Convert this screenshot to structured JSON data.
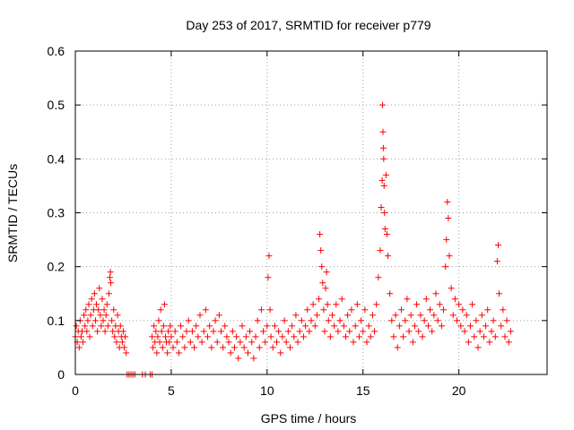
{
  "chart_data": {
    "type": "scatter",
    "title": "Day 253 of 2017, SRMTID for receiver p779",
    "xlabel": "GPS time / hours",
    "ylabel": "SRMTID / TECUs",
    "xlim": [
      0,
      24.6
    ],
    "ylim": [
      0,
      0.6
    ],
    "xticks": [
      0,
      5,
      10,
      15,
      20
    ],
    "yticks": [
      0,
      0.1,
      0.2,
      0.3,
      0.4,
      0.5,
      0.6
    ],
    "xtick_labels": [
      "0",
      "5",
      "10",
      "15",
      "20"
    ],
    "ytick_labels": [
      "0",
      "0.1",
      "0.2",
      "0.3",
      "0.4",
      "0.5",
      "0.6"
    ],
    "grid": true,
    "marker": "+",
    "color": "#ff0000",
    "series": [
      {
        "name": "SRMTID",
        "points": [
          [
            0.0,
            0.07
          ],
          [
            0.05,
            0.09
          ],
          [
            0.1,
            0.06
          ],
          [
            0.15,
            0.08
          ],
          [
            0.2,
            0.05
          ],
          [
            0.25,
            0.1
          ],
          [
            0.3,
            0.07
          ],
          [
            0.35,
            0.08
          ],
          [
            0.4,
            0.06
          ],
          [
            0.45,
            0.11
          ],
          [
            0.5,
            0.09
          ],
          [
            0.55,
            0.12
          ],
          [
            0.6,
            0.08
          ],
          [
            0.65,
            0.1
          ],
          [
            0.7,
            0.13
          ],
          [
            0.75,
            0.07
          ],
          [
            0.8,
            0.11
          ],
          [
            0.85,
            0.14
          ],
          [
            0.9,
            0.09
          ],
          [
            0.95,
            0.12
          ],
          [
            1.0,
            0.15
          ],
          [
            1.05,
            0.1
          ],
          [
            1.1,
            0.13
          ],
          [
            1.15,
            0.08
          ],
          [
            1.2,
            0.12
          ],
          [
            1.25,
            0.16
          ],
          [
            1.3,
            0.11
          ],
          [
            1.35,
            0.09
          ],
          [
            1.4,
            0.14
          ],
          [
            1.45,
            0.1
          ],
          [
            1.5,
            0.12
          ],
          [
            1.55,
            0.08
          ],
          [
            1.6,
            0.11
          ],
          [
            1.65,
            0.13
          ],
          [
            1.7,
            0.09
          ],
          [
            1.75,
            0.15
          ],
          [
            1.8,
            0.18
          ],
          [
            1.83,
            0.19
          ],
          [
            1.85,
            0.17
          ],
          [
            1.9,
            0.1
          ],
          [
            1.95,
            0.08
          ],
          [
            2.0,
            0.12
          ],
          [
            2.05,
            0.07
          ],
          [
            2.1,
            0.09
          ],
          [
            2.15,
            0.06
          ],
          [
            2.2,
            0.11
          ],
          [
            2.25,
            0.08
          ],
          [
            2.3,
            0.05
          ],
          [
            2.35,
            0.09
          ],
          [
            2.4,
            0.07
          ],
          [
            2.45,
            0.06
          ],
          [
            2.5,
            0.08
          ],
          [
            2.55,
            0.05
          ],
          [
            2.6,
            0.07
          ],
          [
            2.65,
            0.04
          ],
          [
            2.7,
            0.0
          ],
          [
            2.8,
            0.0
          ],
          [
            2.9,
            0.0
          ],
          [
            3.0,
            0.0
          ],
          [
            3.1,
            0.0
          ],
          [
            3.5,
            0.0
          ],
          [
            3.65,
            0.0
          ],
          [
            3.9,
            0.0
          ],
          [
            4.0,
            0.0
          ],
          [
            4.0,
            0.07
          ],
          [
            4.05,
            0.05
          ],
          [
            4.1,
            0.09
          ],
          [
            4.15,
            0.06
          ],
          [
            4.2,
            0.08
          ],
          [
            4.25,
            0.04
          ],
          [
            4.3,
            0.07
          ],
          [
            4.35,
            0.1
          ],
          [
            4.4,
            0.06
          ],
          [
            4.45,
            0.12
          ],
          [
            4.5,
            0.08
          ],
          [
            4.55,
            0.05
          ],
          [
            4.6,
            0.09
          ],
          [
            4.65,
            0.13
          ],
          [
            4.7,
            0.07
          ],
          [
            4.75,
            0.06
          ],
          [
            4.8,
            0.04
          ],
          [
            4.85,
            0.08
          ],
          [
            4.9,
            0.06
          ],
          [
            4.95,
            0.09
          ],
          [
            5.0,
            0.07
          ],
          [
            5.1,
            0.05
          ],
          [
            5.2,
            0.08
          ],
          [
            5.3,
            0.06
          ],
          [
            5.4,
            0.04
          ],
          [
            5.5,
            0.09
          ],
          [
            5.6,
            0.07
          ],
          [
            5.7,
            0.05
          ],
          [
            5.8,
            0.08
          ],
          [
            5.9,
            0.1
          ],
          [
            6.0,
            0.06
          ],
          [
            6.1,
            0.08
          ],
          [
            6.2,
            0.05
          ],
          [
            6.3,
            0.09
          ],
          [
            6.4,
            0.07
          ],
          [
            6.5,
            0.11
          ],
          [
            6.6,
            0.06
          ],
          [
            6.7,
            0.08
          ],
          [
            6.8,
            0.12
          ],
          [
            6.9,
            0.07
          ],
          [
            7.0,
            0.09
          ],
          [
            7.1,
            0.05
          ],
          [
            7.2,
            0.08
          ],
          [
            7.3,
            0.1
          ],
          [
            7.4,
            0.06
          ],
          [
            7.5,
            0.11
          ],
          [
            7.6,
            0.08
          ],
          [
            7.7,
            0.05
          ],
          [
            7.8,
            0.09
          ],
          [
            7.9,
            0.07
          ],
          [
            8.0,
            0.06
          ],
          [
            8.1,
            0.04
          ],
          [
            8.2,
            0.08
          ],
          [
            8.3,
            0.05
          ],
          [
            8.4,
            0.07
          ],
          [
            8.5,
            0.03
          ],
          [
            8.6,
            0.06
          ],
          [
            8.7,
            0.09
          ],
          [
            8.8,
            0.05
          ],
          [
            8.9,
            0.07
          ],
          [
            9.0,
            0.04
          ],
          [
            9.1,
            0.08
          ],
          [
            9.2,
            0.06
          ],
          [
            9.3,
            0.03
          ],
          [
            9.4,
            0.07
          ],
          [
            9.5,
            0.1
          ],
          [
            9.6,
            0.05
          ],
          [
            9.7,
            0.12
          ],
          [
            9.8,
            0.08
          ],
          [
            9.9,
            0.06
          ],
          [
            10.0,
            0.09
          ],
          [
            10.05,
            0.18
          ],
          [
            10.1,
            0.22
          ],
          [
            10.15,
            0.12
          ],
          [
            10.2,
            0.07
          ],
          [
            10.3,
            0.05
          ],
          [
            10.4,
            0.09
          ],
          [
            10.5,
            0.06
          ],
          [
            10.6,
            0.08
          ],
          [
            10.7,
            0.04
          ],
          [
            10.8,
            0.07
          ],
          [
            10.9,
            0.1
          ],
          [
            11.0,
            0.06
          ],
          [
            11.1,
            0.08
          ],
          [
            11.2,
            0.05
          ],
          [
            11.3,
            0.09
          ],
          [
            11.4,
            0.07
          ],
          [
            11.5,
            0.11
          ],
          [
            11.6,
            0.06
          ],
          [
            11.7,
            0.08
          ],
          [
            11.8,
            0.1
          ],
          [
            11.9,
            0.07
          ],
          [
            12.0,
            0.09
          ],
          [
            12.1,
            0.12
          ],
          [
            12.2,
            0.08
          ],
          [
            12.3,
            0.1
          ],
          [
            12.4,
            0.13
          ],
          [
            12.5,
            0.09
          ],
          [
            12.6,
            0.11
          ],
          [
            12.7,
            0.14
          ],
          [
            12.75,
            0.26
          ],
          [
            12.8,
            0.23
          ],
          [
            12.85,
            0.2
          ],
          [
            12.9,
            0.17
          ],
          [
            12.95,
            0.12
          ],
          [
            13.0,
            0.08
          ],
          [
            13.05,
            0.16
          ],
          [
            13.1,
            0.19
          ],
          [
            13.15,
            0.13
          ],
          [
            13.2,
            0.1
          ],
          [
            13.3,
            0.07
          ],
          [
            13.4,
            0.11
          ],
          [
            13.5,
            0.09
          ],
          [
            13.6,
            0.13
          ],
          [
            13.7,
            0.08
          ],
          [
            13.8,
            0.1
          ],
          [
            13.9,
            0.14
          ],
          [
            14.0,
            0.09
          ],
          [
            14.1,
            0.07
          ],
          [
            14.2,
            0.11
          ],
          [
            14.3,
            0.08
          ],
          [
            14.4,
            0.12
          ],
          [
            14.5,
            0.06
          ],
          [
            14.6,
            0.09
          ],
          [
            14.7,
            0.13
          ],
          [
            14.8,
            0.07
          ],
          [
            14.9,
            0.1
          ],
          [
            15.0,
            0.08
          ],
          [
            15.1,
            0.12
          ],
          [
            15.2,
            0.06
          ],
          [
            15.3,
            0.09
          ],
          [
            15.4,
            0.07
          ],
          [
            15.5,
            0.11
          ],
          [
            15.6,
            0.08
          ],
          [
            15.7,
            0.13
          ],
          [
            15.8,
            0.18
          ],
          [
            15.9,
            0.23
          ],
          [
            15.95,
            0.31
          ],
          [
            16.0,
            0.36
          ],
          [
            16.02,
            0.5
          ],
          [
            16.04,
            0.45
          ],
          [
            16.06,
            0.42
          ],
          [
            16.08,
            0.4
          ],
          [
            16.1,
            0.35
          ],
          [
            16.12,
            0.3
          ],
          [
            16.15,
            0.27
          ],
          [
            16.2,
            0.37
          ],
          [
            16.25,
            0.26
          ],
          [
            16.3,
            0.22
          ],
          [
            16.4,
            0.15
          ],
          [
            16.5,
            0.1
          ],
          [
            16.6,
            0.07
          ],
          [
            16.7,
            0.11
          ],
          [
            16.8,
            0.05
          ],
          [
            16.9,
            0.09
          ],
          [
            17.0,
            0.12
          ],
          [
            17.1,
            0.07
          ],
          [
            17.2,
            0.1
          ],
          [
            17.3,
            0.14
          ],
          [
            17.4,
            0.08
          ],
          [
            17.5,
            0.11
          ],
          [
            17.6,
            0.06
          ],
          [
            17.7,
            0.09
          ],
          [
            17.8,
            0.13
          ],
          [
            17.9,
            0.08
          ],
          [
            18.0,
            0.11
          ],
          [
            18.1,
            0.07
          ],
          [
            18.2,
            0.1
          ],
          [
            18.3,
            0.14
          ],
          [
            18.4,
            0.09
          ],
          [
            18.5,
            0.12
          ],
          [
            18.6,
            0.08
          ],
          [
            18.7,
            0.11
          ],
          [
            18.8,
            0.15
          ],
          [
            18.9,
            0.1
          ],
          [
            19.0,
            0.13
          ],
          [
            19.1,
            0.09
          ],
          [
            19.2,
            0.12
          ],
          [
            19.3,
            0.2
          ],
          [
            19.35,
            0.25
          ],
          [
            19.4,
            0.32
          ],
          [
            19.45,
            0.29
          ],
          [
            19.5,
            0.22
          ],
          [
            19.6,
            0.16
          ],
          [
            19.7,
            0.11
          ],
          [
            19.8,
            0.14
          ],
          [
            19.9,
            0.1
          ],
          [
            20.0,
            0.13
          ],
          [
            20.1,
            0.09
          ],
          [
            20.2,
            0.12
          ],
          [
            20.3,
            0.08
          ],
          [
            20.4,
            0.11
          ],
          [
            20.5,
            0.06
          ],
          [
            20.6,
            0.09
          ],
          [
            20.7,
            0.13
          ],
          [
            20.8,
            0.07
          ],
          [
            20.9,
            0.1
          ],
          [
            21.0,
            0.05
          ],
          [
            21.1,
            0.08
          ],
          [
            21.2,
            0.11
          ],
          [
            21.3,
            0.07
          ],
          [
            21.4,
            0.09
          ],
          [
            21.5,
            0.12
          ],
          [
            21.6,
            0.06
          ],
          [
            21.7,
            0.08
          ],
          [
            21.8,
            0.1
          ],
          [
            21.9,
            0.07
          ],
          [
            22.0,
            0.21
          ],
          [
            22.05,
            0.24
          ],
          [
            22.1,
            0.15
          ],
          [
            22.2,
            0.09
          ],
          [
            22.3,
            0.12
          ],
          [
            22.4,
            0.07
          ],
          [
            22.5,
            0.1
          ],
          [
            22.6,
            0.06
          ],
          [
            22.7,
            0.08
          ]
        ]
      }
    ]
  }
}
